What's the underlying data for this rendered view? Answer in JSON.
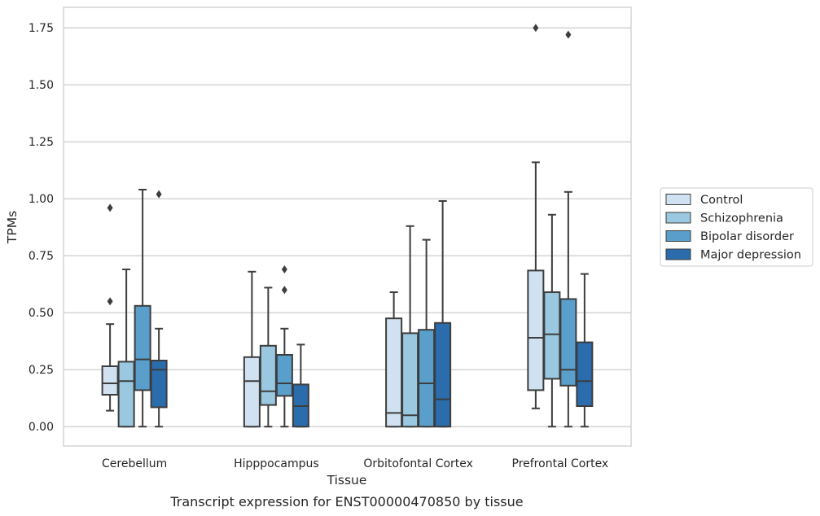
{
  "chart_data": {
    "type": "boxplot",
    "caption": "Transcript expression for ENST00000470850 by tissue",
    "xlabel": "Tissue",
    "ylabel": "TPMs",
    "ylim": [
      -0.085,
      1.84
    ],
    "yticks": [
      "0.00",
      "0.25",
      "0.50",
      "0.75",
      "1.00",
      "1.25",
      "1.50",
      "1.75"
    ],
    "ytick_values": [
      0,
      0.25,
      0.5,
      0.75,
      1.0,
      1.25,
      1.5,
      1.75
    ],
    "grid": true,
    "legend_position": "right",
    "categories": [
      "Cerebellum",
      "Hipppocampus",
      "Orbitofontal Cortex",
      "Prefrontal Cortex"
    ],
    "series": [
      {
        "name": "Control",
        "color": "#d0e2f2",
        "boxes": [
          {
            "whislo": 0.07,
            "q1": 0.14,
            "med": 0.19,
            "q3": 0.265,
            "whishi": 0.45,
            "fliers": [
              0.55,
              0.96
            ]
          },
          {
            "whislo": 0.0,
            "q1": 0.0,
            "med": 0.2,
            "q3": 0.305,
            "whishi": 0.68,
            "fliers": []
          },
          {
            "whislo": 0.0,
            "q1": 0.0,
            "med": 0.06,
            "q3": 0.475,
            "whishi": 0.59,
            "fliers": []
          },
          {
            "whislo": 0.08,
            "q1": 0.16,
            "med": 0.39,
            "q3": 0.685,
            "whishi": 1.16,
            "fliers": [
              1.75
            ]
          }
        ]
      },
      {
        "name": "Schizophrenia",
        "color": "#9ac8e0",
        "boxes": [
          {
            "whislo": 0.0,
            "q1": 0.0,
            "med": 0.2,
            "q3": 0.285,
            "whishi": 0.69,
            "fliers": []
          },
          {
            "whislo": 0.0,
            "q1": 0.095,
            "med": 0.155,
            "q3": 0.355,
            "whishi": 0.61,
            "fliers": []
          },
          {
            "whislo": 0.0,
            "q1": 0.0,
            "med": 0.05,
            "q3": 0.41,
            "whishi": 0.88,
            "fliers": []
          },
          {
            "whislo": 0.0,
            "q1": 0.21,
            "med": 0.405,
            "q3": 0.59,
            "whishi": 0.93,
            "fliers": []
          }
        ]
      },
      {
        "name": "Bipolar disorder",
        "color": "#5a9fcb",
        "boxes": [
          {
            "whislo": 0.0,
            "q1": 0.16,
            "med": 0.295,
            "q3": 0.53,
            "whishi": 1.04,
            "fliers": []
          },
          {
            "whislo": 0.0,
            "q1": 0.135,
            "med": 0.19,
            "q3": 0.315,
            "whishi": 0.43,
            "fliers": [
              0.6,
              0.69
            ]
          },
          {
            "whislo": 0.0,
            "q1": 0.0,
            "med": 0.19,
            "q3": 0.425,
            "whishi": 0.82,
            "fliers": []
          },
          {
            "whislo": 0.0,
            "q1": 0.18,
            "med": 0.25,
            "q3": 0.56,
            "whishi": 1.03,
            "fliers": [
              1.72
            ]
          }
        ]
      },
      {
        "name": "Major depression",
        "color": "#2a6cac",
        "boxes": [
          {
            "whislo": 0.0,
            "q1": 0.085,
            "med": 0.25,
            "q3": 0.29,
            "whishi": 0.43,
            "fliers": [
              1.02
            ]
          },
          {
            "whislo": 0.0,
            "q1": 0.0,
            "med": 0.09,
            "q3": 0.185,
            "whishi": 0.36,
            "fliers": []
          },
          {
            "whislo": 0.0,
            "q1": 0.0,
            "med": 0.12,
            "q3": 0.455,
            "whishi": 0.99,
            "fliers": []
          },
          {
            "whislo": 0.0,
            "q1": 0.09,
            "med": 0.2,
            "q3": 0.37,
            "whishi": 0.67,
            "fliers": []
          }
        ]
      }
    ]
  }
}
